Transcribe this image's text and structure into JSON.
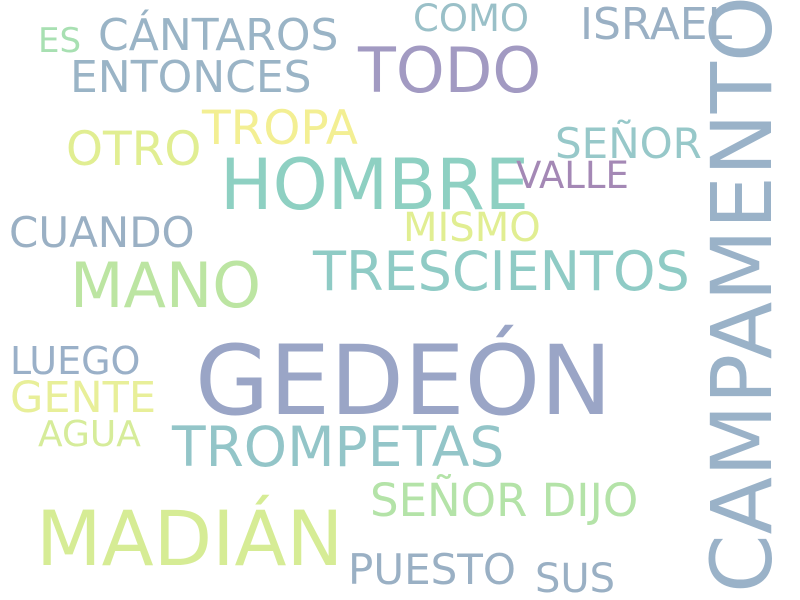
{
  "words": [
    {
      "text": "GEDEÓN",
      "color": "#9aa5c6"
    },
    {
      "text": "CAMPAMENTO",
      "color": "#9ab2c8"
    },
    {
      "text": "MADIÁN",
      "color": "#d6ec95"
    },
    {
      "text": "HOMBRE",
      "color": "#8ed0c2"
    },
    {
      "text": "TODO",
      "color": "#a29ac2"
    },
    {
      "text": "MANO",
      "color": "#bce5a2"
    },
    {
      "text": "TRESCIENTOS",
      "color": "#8fcbc5"
    },
    {
      "text": "TROMPETAS",
      "color": "#93c5c8"
    },
    {
      "text": "SEÑOR DIJO",
      "color": "#b4e3a8"
    },
    {
      "text": "TROPA",
      "color": "#f3ef93"
    },
    {
      "text": "OTRO",
      "color": "#e1ee92"
    },
    {
      "text": "SEÑOR",
      "color": "#97c8c9"
    },
    {
      "text": "CÁNTAROS",
      "color": "#9ab4c6"
    },
    {
      "text": "ENTONCES",
      "color": "#9ab4c6"
    },
    {
      "text": "ISRAEL",
      "color": "#9ab0c4"
    },
    {
      "text": "CUANDO",
      "color": "#9ab0c4"
    },
    {
      "text": "PUESTO",
      "color": "#9ab0c4"
    },
    {
      "text": "MISMO",
      "color": "#e1ee92"
    },
    {
      "text": "LUEGO",
      "color": "#9ab0c8"
    },
    {
      "text": "GENTE",
      "color": "#e8ef99"
    },
    {
      "text": "VALLE",
      "color": "#a488b5"
    },
    {
      "text": "SUS",
      "color": "#9ab0c4"
    },
    {
      "text": "COMO",
      "color": "#9ac0c8"
    },
    {
      "text": "AGUA",
      "color": "#d6ec9a"
    },
    {
      "text": "ES",
      "color": "#a8e0b2"
    }
  ]
}
